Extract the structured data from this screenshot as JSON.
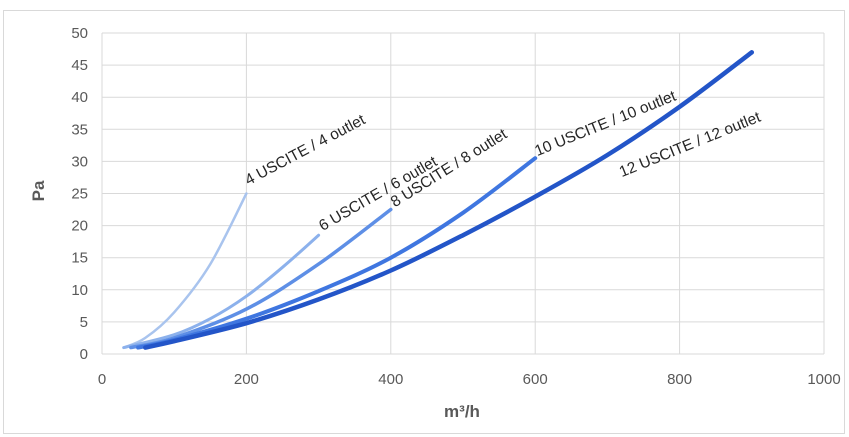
{
  "chart_data": {
    "type": "line",
    "title": "",
    "xlabel": "m³/h",
    "ylabel": "Pa",
    "xlim": [
      0,
      1000
    ],
    "ylim": [
      0,
      50
    ],
    "x_ticks": [
      "0",
      "200",
      "400",
      "600",
      "800",
      "1000"
    ],
    "y_ticks": [
      "0",
      "5",
      "10",
      "15",
      "20",
      "25",
      "30",
      "35",
      "40",
      "45",
      "50"
    ],
    "grid": "vertical and horizontal",
    "legend": "labels placed along the end of each curve",
    "series": [
      {
        "name": "4 USCITE / 4 outlet",
        "color": "#a9c4ee",
        "points": [
          [
            30,
            1
          ],
          [
            60,
            2.5
          ],
          [
            100,
            6.5
          ],
          [
            150,
            14
          ],
          [
            200,
            25
          ]
        ]
      },
      {
        "name": "6 USCITE / 6 outlet",
        "color": "#8cb1ec",
        "points": [
          [
            30,
            1
          ],
          [
            100,
            3
          ],
          [
            150,
            5.5
          ],
          [
            200,
            9
          ],
          [
            250,
            13.5
          ],
          [
            300,
            18.5
          ]
        ]
      },
      {
        "name": "8 USCITE / 8 outlet",
        "color": "#5e8fe6",
        "points": [
          [
            40,
            1
          ],
          [
            100,
            2.5
          ],
          [
            200,
            7
          ],
          [
            300,
            14
          ],
          [
            400,
            22.5
          ]
        ]
      },
      {
        "name": "10 USCITE / 10 outlet",
        "color": "#3f76e0",
        "points": [
          [
            50,
            1
          ],
          [
            100,
            2.2
          ],
          [
            200,
            5.5
          ],
          [
            300,
            9.8
          ],
          [
            400,
            15
          ],
          [
            500,
            22
          ],
          [
            600,
            30.5
          ]
        ]
      },
      {
        "name": "12 USCITE / 12 outlet",
        "color": "#2355c8",
        "points": [
          [
            60,
            1
          ],
          [
            100,
            2
          ],
          [
            200,
            4.8
          ],
          [
            300,
            8.5
          ],
          [
            400,
            13
          ],
          [
            500,
            18.5
          ],
          [
            600,
            24.5
          ],
          [
            700,
            31
          ],
          [
            800,
            38.5
          ],
          [
            900,
            47
          ]
        ]
      }
    ]
  }
}
